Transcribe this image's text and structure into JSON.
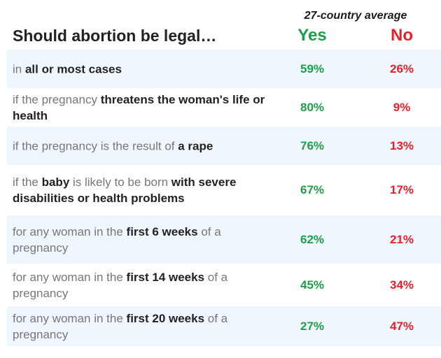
{
  "chart_data": {
    "type": "table",
    "title": "Should abortion be legal…",
    "subtitle": "27-country average",
    "columns": [
      "Yes",
      "No"
    ],
    "colors": {
      "yes": "#1aa04a",
      "no": "#e8202a",
      "row_shade": "#f0f6fd"
    },
    "rows": [
      {
        "prefix": "in ",
        "bold": "all or most cases",
        "suffix": "",
        "yes": "59%",
        "no": "26%"
      },
      {
        "prefix": "if the pregnancy ",
        "bold": "threatens the woman's life or health",
        "suffix": "",
        "yes": "80%",
        "no": "9%"
      },
      {
        "prefix": "if the pregnancy is the result of ",
        "bold": "a rape",
        "suffix": "",
        "yes": "76%",
        "no": "13%"
      },
      {
        "prefix": "if the ",
        "bold": "baby",
        "mid": " is likely to be born ",
        "bold2": "with severe disabilities or health problems",
        "suffix": "",
        "yes": "67%",
        "no": "17%"
      },
      {
        "prefix": "for any woman in the ",
        "bold": "first 6 weeks",
        "suffix": " of a pregnancy",
        "yes": "62%",
        "no": "21%"
      },
      {
        "prefix": "for any woman in the ",
        "bold": "first 14 weeks",
        "suffix": " of a pregnancy",
        "yes": "45%",
        "no": "34%"
      },
      {
        "prefix": "for any woman in the ",
        "bold": "first 20 weeks",
        "suffix": " of a pregnancy",
        "yes": "27%",
        "no": "47%"
      }
    ]
  }
}
